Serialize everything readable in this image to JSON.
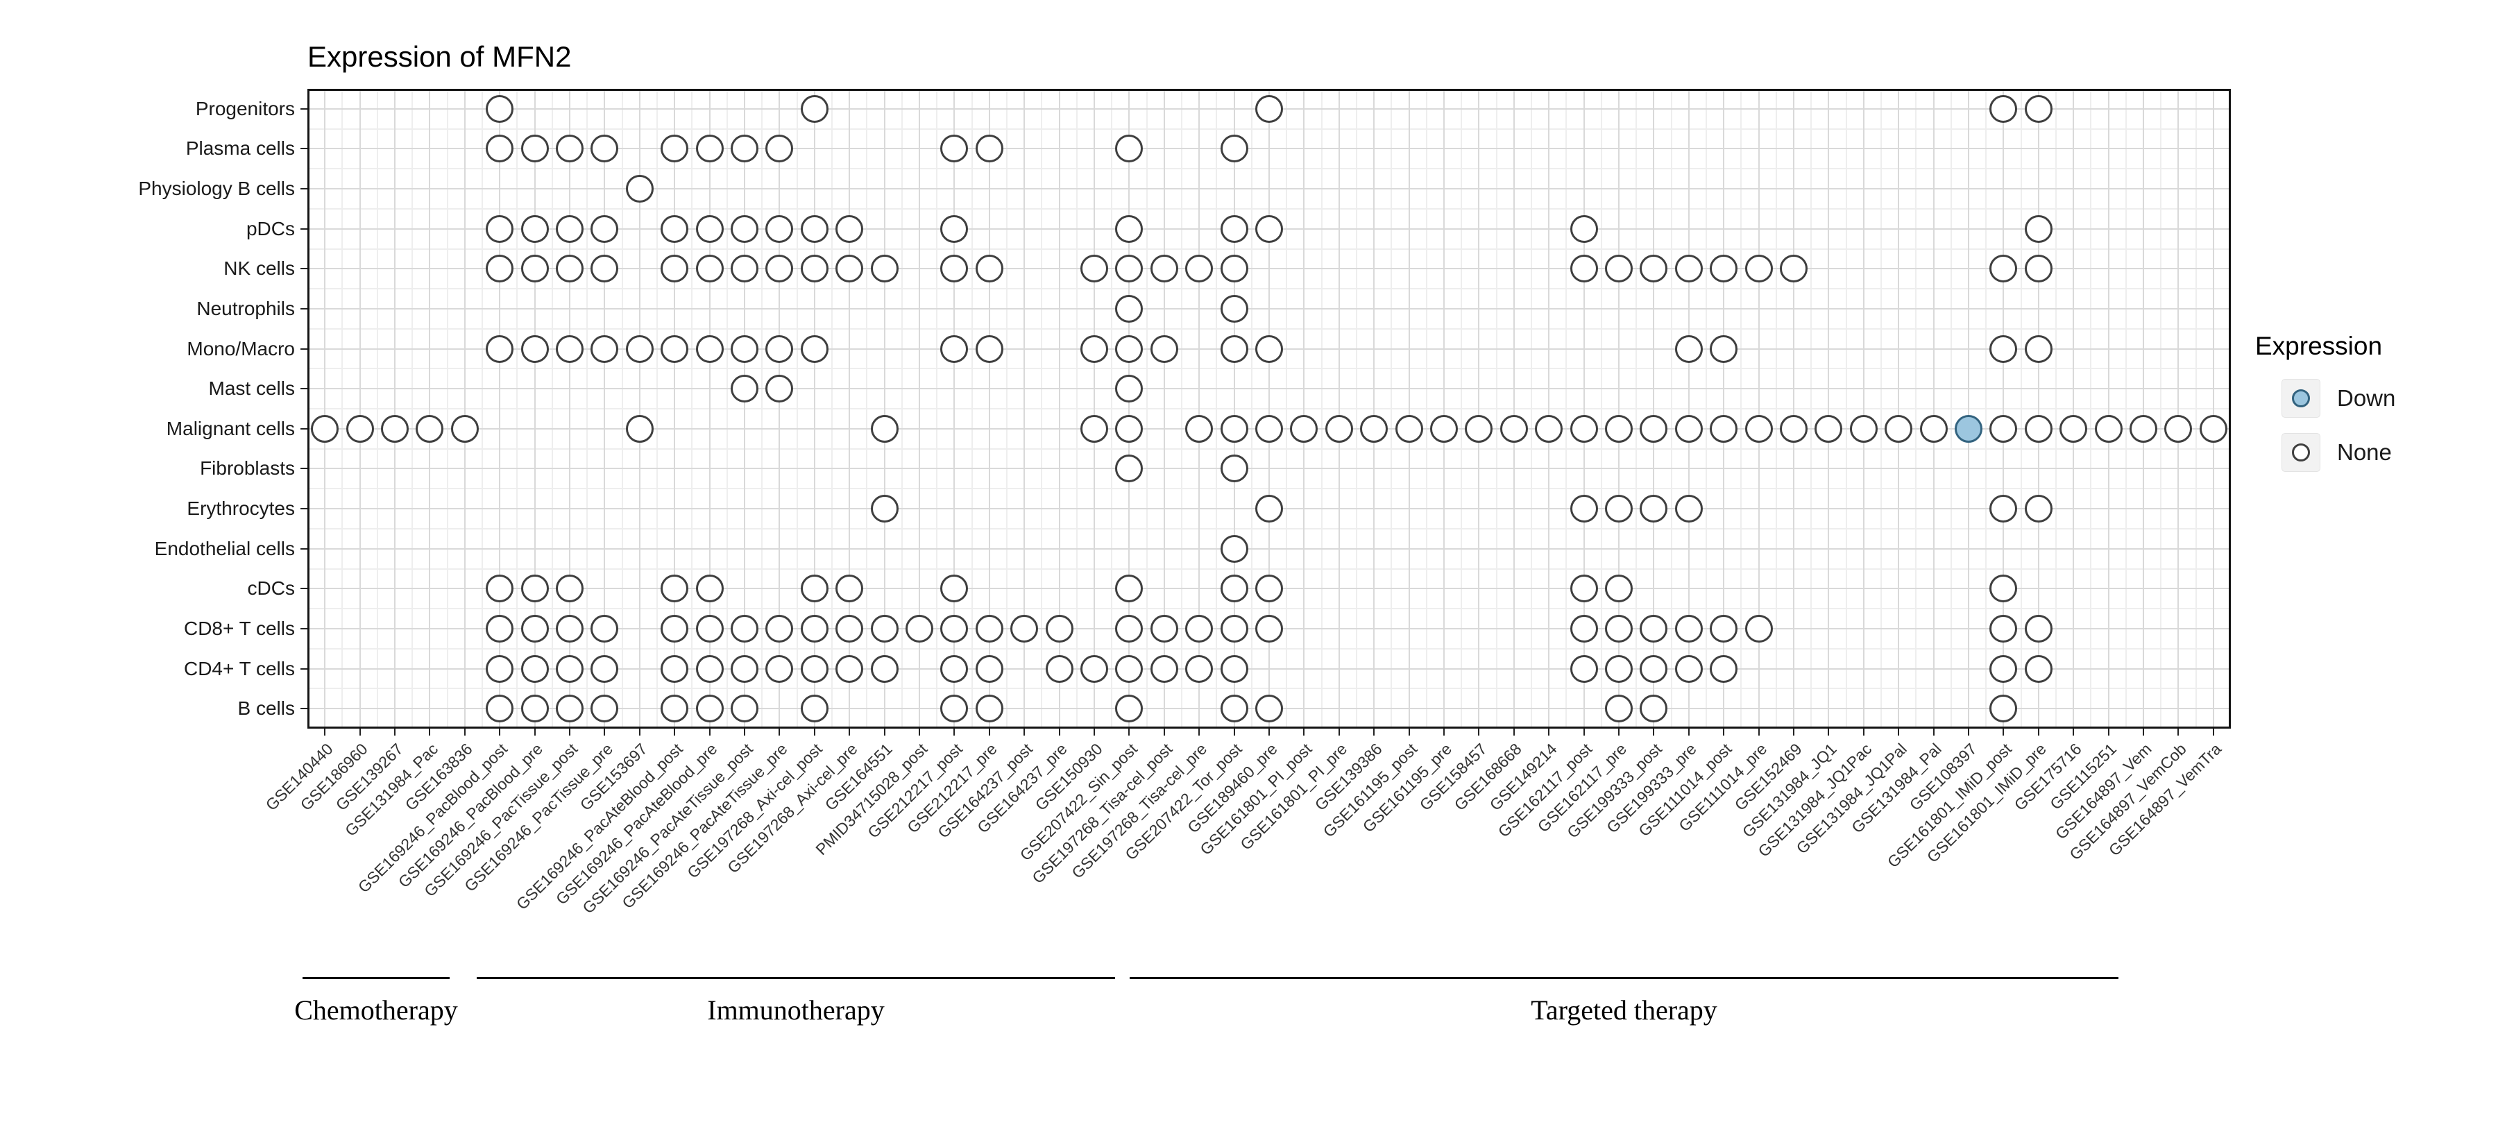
{
  "title": "Expression of MFN2",
  "legend": {
    "title": "Expression",
    "items": [
      {
        "label": "Down",
        "fill": "#9CC6DF",
        "stroke": "#33637F"
      },
      {
        "label": "None",
        "fill": "#FFFFFF",
        "stroke": "#3F3F3F"
      }
    ]
  },
  "chart_data": {
    "type": "scatter",
    "subtype": "dot-matrix",
    "title": "Expression of MFN2",
    "grid": true,
    "legend_position": "right",
    "x_tick_rotation": 45,
    "rows": [
      "Progenitors",
      "Plasma cells",
      "Physiology B cells",
      "pDCs",
      "NK cells",
      "Neutrophils",
      "Mono/Macro",
      "Mast cells",
      "Malignant cells",
      "Fibroblasts",
      "Erythrocytes",
      "Endothelial cells",
      "cDCs",
      "CD8+ T cells",
      "CD4+ T cells",
      "B cells"
    ],
    "columns": [
      "GSE140440",
      "GSE186960",
      "GSE139267",
      "GSE131984_Pac",
      "GSE163836",
      "GSE169246_PacBlood_post",
      "GSE169246_PacBlood_pre",
      "GSE169246_PacTissue_post",
      "GSE169246_PacTissue_pre",
      "GSE153697",
      "GSE169246_PacAteBlood_post",
      "GSE169246_PacAteBlood_pre",
      "GSE169246_PacAteTissue_post",
      "GSE169246_PacAteTissue_pre",
      "GSE197268_Axi-cel_post",
      "GSE197268_Axi-cel_pre",
      "GSE164551",
      "PMID34715028_post",
      "GSE212217_post",
      "GSE212217_pre",
      "GSE164237_post",
      "GSE164237_pre",
      "GSE150930",
      "GSE207422_Sin_post",
      "GSE197268_Tisa-cel_post",
      "GSE197268_Tisa-cel_pre",
      "GSE207422_Tor_post",
      "GSE189460_pre",
      "GSE161801_PI_post",
      "GSE161801_PI_pre",
      "GSE139386",
      "GSE161195_post",
      "GSE161195_pre",
      "GSE158457",
      "GSE168668",
      "GSE149214",
      "GSE162117_post",
      "GSE162117_pre",
      "GSE199333_post",
      "GSE199333_pre",
      "GSE111014_post",
      "GSE111014_pre",
      "GSE152469",
      "GSE131984_JQ1",
      "GSE131984_JQ1Pac",
      "GSE131984_JQ1Pal",
      "GSE131984_Pal",
      "GSE108397",
      "GSE161801_IMiD_post",
      "GSE161801_IMiD_pre",
      "GSE175716",
      "GSE115251",
      "GSE164897_Vem",
      "GSE164897_VemCob",
      "GSE164897_VemTra"
    ],
    "column_groups": [
      {
        "label": "Chemotherapy",
        "start": 0,
        "end": 4
      },
      {
        "label": "Immunotherapy",
        "start": 5,
        "end": 26
      },
      {
        "label": "Targeted therapy",
        "start": 27,
        "end": 54
      }
    ],
    "presence": {
      "Progenitors": [
        5,
        14,
        27,
        48,
        49
      ],
      "Plasma cells": [
        5,
        6,
        7,
        8,
        10,
        11,
        12,
        13,
        18,
        19,
        23,
        26
      ],
      "Physiology B cells": [
        9
      ],
      "pDCs": [
        5,
        6,
        7,
        8,
        10,
        11,
        12,
        13,
        14,
        15,
        18,
        23,
        26,
        27,
        36,
        49
      ],
      "NK cells": [
        5,
        6,
        7,
        8,
        10,
        11,
        12,
        13,
        14,
        15,
        16,
        18,
        19,
        22,
        23,
        24,
        25,
        26,
        36,
        37,
        38,
        39,
        40,
        41,
        42,
        48,
        49
      ],
      "Neutrophils": [
        23,
        26
      ],
      "Mono/Macro": [
        5,
        6,
        7,
        8,
        9,
        10,
        11,
        12,
        13,
        14,
        18,
        19,
        22,
        23,
        24,
        26,
        27,
        39,
        40,
        48,
        49
      ],
      "Mast cells": [
        12,
        13,
        23
      ],
      "Malignant cells": [
        0,
        1,
        2,
        3,
        4,
        9,
        16,
        22,
        23,
        25,
        26,
        27,
        28,
        29,
        30,
        31,
        32,
        33,
        34,
        35,
        36,
        37,
        38,
        39,
        40,
        41,
        42,
        43,
        44,
        45,
        46,
        47,
        48,
        49,
        50,
        51,
        52,
        53,
        54
      ],
      "Fibroblasts": [
        23,
        26
      ],
      "Erythrocytes": [
        16,
        27,
        36,
        37,
        38,
        39,
        48,
        49
      ],
      "Endothelial cells": [
        26
      ],
      "cDCs": [
        5,
        6,
        7,
        10,
        11,
        14,
        15,
        18,
        23,
        26,
        27,
        36,
        37,
        48
      ],
      "CD8+ T cells": [
        5,
        6,
        7,
        8,
        10,
        11,
        12,
        13,
        14,
        15,
        16,
        17,
        18,
        19,
        20,
        21,
        23,
        24,
        25,
        26,
        27,
        36,
        37,
        38,
        39,
        40,
        41,
        48,
        49
      ],
      "CD4+ T cells": [
        5,
        6,
        7,
        8,
        10,
        11,
        12,
        13,
        14,
        15,
        16,
        18,
        19,
        21,
        22,
        23,
        24,
        25,
        26,
        36,
        37,
        38,
        39,
        40,
        48,
        49
      ],
      "B cells": [
        5,
        6,
        7,
        8,
        10,
        11,
        12,
        14,
        18,
        19,
        23,
        26,
        27,
        37,
        38,
        48
      ]
    },
    "down": [
      {
        "row": "Malignant cells",
        "column": "GSE108397"
      }
    ]
  }
}
